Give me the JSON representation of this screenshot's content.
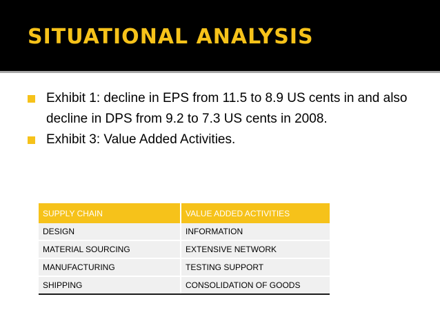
{
  "slide": {
    "title": "SITUATIONAL ANALYSIS",
    "bullets": [
      "Exhibit 1: decline in EPS from 11.5 to 8.9 US cents in and also decline in DPS from 9.2 to 7.3 US cents in 2008.",
      "Exhibit 3: Value Added Activities."
    ]
  },
  "table": {
    "headers": [
      "SUPPLY CHAIN",
      "VALUE ADDED ACTIVITIES"
    ],
    "rows": [
      [
        "DESIGN",
        "INFORMATION"
      ],
      [
        "MATERIAL SOURCING",
        "EXTENSIVE NETWORK"
      ],
      [
        "MANUFACTURING",
        "TESTING SUPPORT"
      ],
      [
        "SHIPPING",
        "CONSOLIDATION OF GOODS"
      ]
    ]
  },
  "colors": {
    "title_band": "#000000",
    "accent": "#f6c21a",
    "row_background": "#f0f0f0"
  }
}
